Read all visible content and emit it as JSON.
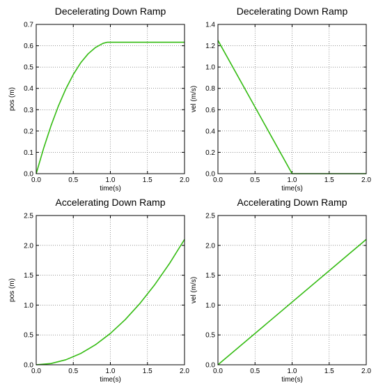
{
  "colors": {
    "line": "#33bb11"
  },
  "chart_data": [
    {
      "type": "line",
      "title": "Decelerating Down Ramp",
      "xlabel": "time(s)",
      "ylabel": "pos (m)",
      "xlim": [
        0,
        2
      ],
      "ylim": [
        0,
        0.7
      ],
      "xticks": [
        "0.0",
        "0.5",
        "1.0",
        "1.5",
        "2.0"
      ],
      "yticks": [
        "0.0",
        "0.1",
        "0.2",
        "0.3",
        "0.4",
        "0.5",
        "0.6",
        "0.7"
      ],
      "grid": true,
      "x": [
        0.0,
        0.1,
        0.2,
        0.3,
        0.4,
        0.5,
        0.6,
        0.7,
        0.8,
        0.9,
        0.96,
        1.0,
        1.5,
        2.0
      ],
      "y": [
        0.0,
        0.119,
        0.225,
        0.318,
        0.398,
        0.465,
        0.52,
        0.562,
        0.592,
        0.611,
        0.6165,
        0.6165,
        0.6165,
        0.6165
      ]
    },
    {
      "type": "line",
      "title": "Decelerating Down Ramp",
      "xlabel": "time(s)",
      "ylabel": "vel (m/s)",
      "xlim": [
        0,
        2
      ],
      "ylim": [
        0,
        1.4
      ],
      "xticks": [
        "0.0",
        "0.5",
        "1.0",
        "1.5",
        "2.0"
      ],
      "yticks": [
        "0.0",
        "0.2",
        "0.4",
        "0.6",
        "0.8",
        "1.0",
        "1.2",
        "1.4"
      ],
      "grid": true,
      "x": [
        0.0,
        1.0,
        1.5,
        2.0
      ],
      "y": [
        1.25,
        0.0,
        0.0,
        0.0
      ]
    },
    {
      "type": "line",
      "title": "Accelerating Down Ramp",
      "xlabel": "time(s)",
      "ylabel": "pos (m)",
      "xlim": [
        0,
        2
      ],
      "ylim": [
        0,
        2.5
      ],
      "xticks": [
        "0.0",
        "0.5",
        "1.0",
        "1.5",
        "2.0"
      ],
      "yticks": [
        "0.0",
        "0.5",
        "1.0",
        "1.5",
        "2.0",
        "2.5"
      ],
      "grid": true,
      "x": [
        0.0,
        0.2,
        0.4,
        0.6,
        0.8,
        1.0,
        1.2,
        1.4,
        1.6,
        1.8,
        2.0
      ],
      "y": [
        0.0,
        0.021,
        0.084,
        0.189,
        0.336,
        0.525,
        0.756,
        1.029,
        1.344,
        1.701,
        2.1
      ]
    },
    {
      "type": "line",
      "title": "Accelerating Down Ramp",
      "xlabel": "time(s)",
      "ylabel": "vel (m/s)",
      "xlim": [
        0,
        2
      ],
      "ylim": [
        0,
        2.5
      ],
      "xticks": [
        "0.0",
        "0.5",
        "1.0",
        "1.5",
        "2.0"
      ],
      "yticks": [
        "0.0",
        "0.5",
        "1.0",
        "1.5",
        "2.0",
        "2.5"
      ],
      "grid": true,
      "x": [
        0.0,
        2.0
      ],
      "y": [
        0.0,
        2.1
      ]
    }
  ]
}
